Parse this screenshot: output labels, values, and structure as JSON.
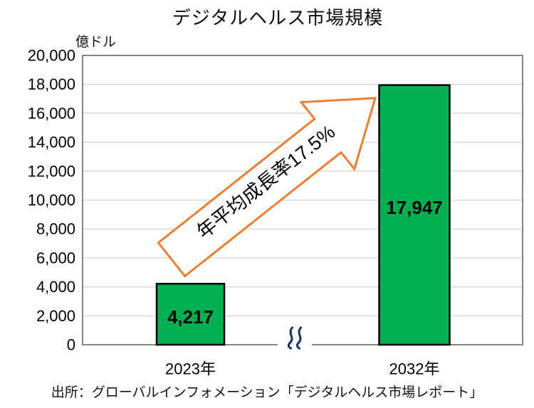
{
  "chart_data": {
    "type": "bar",
    "title": "デジタルヘルス市場規模",
    "unit_label": "億ドル",
    "categories": [
      "2023年",
      "2032年"
    ],
    "values": [
      4217,
      17947
    ],
    "value_labels": [
      "4,217",
      "17,947"
    ],
    "ylim": [
      0,
      20000
    ],
    "ytick_step": 2000,
    "yticks": [
      "0",
      "2,000",
      "4,000",
      "6,000",
      "8,000",
      "10,000",
      "12,000",
      "14,000",
      "16,000",
      "18,000",
      "20,000"
    ],
    "grid": true,
    "legend": false,
    "axis_break": true,
    "annotation": {
      "type": "growth-arrow",
      "label": "年平均成長率17.5%"
    },
    "source": "出所：グローバルインフォメーション「デジタルヘルス市場レポート」",
    "colors": {
      "bar_fill": "#00B050",
      "bar_border": "#000000",
      "arrow_fill": "#FFFFFF",
      "arrow_stroke": "#ED7D31",
      "gridline": "#D9D9D9",
      "plot_border": "#858585",
      "axis_break_color": "#1F3864",
      "text": "#000000"
    }
  }
}
